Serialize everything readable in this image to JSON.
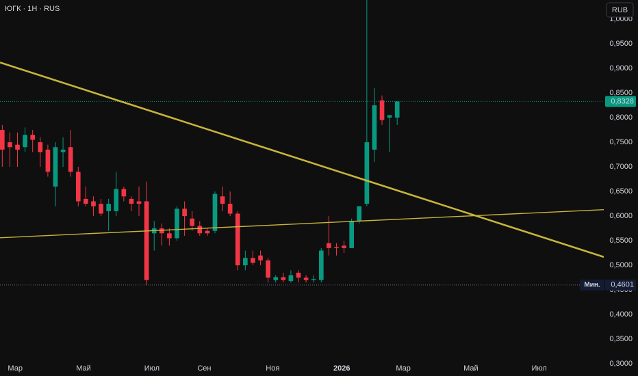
{
  "header": {
    "title": "ЮГК · 1Н · RUS",
    "currency": "RUB"
  },
  "chart_data": {
    "type": "candlestick",
    "x": [
      0,
      1,
      2,
      3,
      4,
      5,
      6,
      7,
      8,
      9,
      10,
      11,
      12,
      13,
      14,
      15,
      16,
      17,
      18,
      19,
      20,
      21,
      22,
      23,
      24,
      25,
      26,
      27,
      28,
      29,
      30,
      31,
      32,
      33,
      34,
      35,
      36,
      37,
      38,
      39,
      40,
      41,
      42,
      43,
      44,
      45,
      46,
      47,
      48,
      49,
      50,
      51,
      52
    ],
    "open": [
      0.775,
      0.75,
      0.745,
      0.74,
      0.765,
      0.75,
      0.735,
      0.66,
      0.73,
      0.74,
      0.69,
      0.635,
      0.63,
      0.625,
      0.61,
      0.61,
      0.655,
      0.635,
      0.63,
      0.63,
      0.565,
      0.575,
      0.565,
      0.555,
      0.615,
      0.595,
      0.58,
      0.57,
      0.57,
      0.64,
      0.625,
      0.605,
      0.5,
      0.515,
      0.52,
      0.51,
      0.47,
      0.476,
      0.468,
      0.485,
      0.475,
      0.47,
      0.47,
      0.545,
      0.537,
      0.54,
      0.535,
      0.59,
      0.625,
      0.735,
      0.835,
      0.8,
      0.8
    ],
    "high": [
      0.785,
      0.77,
      0.77,
      0.78,
      0.775,
      0.76,
      0.745,
      0.75,
      0.76,
      0.775,
      0.7,
      0.66,
      0.64,
      0.635,
      0.635,
      0.69,
      0.66,
      0.64,
      0.66,
      0.67,
      0.59,
      0.585,
      0.575,
      0.62,
      0.63,
      0.61,
      0.59,
      0.575,
      0.65,
      0.66,
      0.65,
      0.61,
      0.53,
      0.53,
      0.53,
      0.515,
      0.48,
      0.485,
      0.49,
      0.49,
      0.48,
      0.48,
      0.535,
      0.6,
      0.545,
      0.55,
      0.595,
      0.62,
      1.05,
      0.86,
      0.845,
      0.805,
      0.833
    ],
    "low": [
      0.7,
      0.7,
      0.7,
      0.73,
      0.73,
      0.7,
      0.68,
      0.62,
      0.7,
      0.68,
      0.62,
      0.62,
      0.6,
      0.6,
      0.57,
      0.6,
      0.63,
      0.61,
      0.6,
      0.46,
      0.53,
      0.54,
      0.54,
      0.55,
      0.56,
      0.57,
      0.56,
      0.56,
      0.565,
      0.61,
      0.6,
      0.49,
      0.49,
      0.5,
      0.5,
      0.465,
      0.465,
      0.465,
      0.465,
      0.465,
      0.465,
      0.465,
      0.465,
      0.52,
      0.52,
      0.525,
      0.535,
      0.585,
      0.62,
      0.71,
      0.785,
      0.73,
      0.785
    ],
    "close": [
      0.735,
      0.74,
      0.735,
      0.765,
      0.755,
      0.73,
      0.69,
      0.74,
      0.735,
      0.69,
      0.63,
      0.625,
      0.62,
      0.605,
      0.625,
      0.655,
      0.64,
      0.625,
      0.625,
      0.47,
      0.575,
      0.565,
      0.555,
      0.615,
      0.6,
      0.58,
      0.565,
      0.565,
      0.645,
      0.625,
      0.605,
      0.5,
      0.515,
      0.505,
      0.51,
      0.475,
      0.476,
      0.47,
      0.48,
      0.475,
      0.47,
      0.472,
      0.53,
      0.535,
      0.535,
      0.535,
      0.59,
      0.62,
      0.75,
      0.825,
      0.795,
      0.805,
      0.8328
    ],
    "up_color": "#089981",
    "down_color": "#f23645",
    "xlim": [
      -0.3,
      79.2
    ],
    "xticks": [
      {
        "value": 1.7,
        "label": "Мар"
      },
      {
        "value": 10.7,
        "label": "Май"
      },
      {
        "value": 19.7,
        "label": "Июл"
      },
      {
        "value": 26.6,
        "label": "Сен"
      },
      {
        "value": 35.6,
        "label": "Ноя"
      },
      {
        "value": 44.7,
        "label": "2026"
      },
      {
        "value": 52.8,
        "label": "Мар"
      },
      {
        "value": 61.7,
        "label": "Май"
      },
      {
        "value": 70.7,
        "label": "Июл"
      }
    ],
    "ylim": [
      0.2752,
      1.0389
    ],
    "yticks": [
      {
        "value": 0.3,
        "label": "0,3000"
      },
      {
        "value": 0.35,
        "label": "0,3500"
      },
      {
        "value": 0.4,
        "label": "0,4000"
      },
      {
        "value": 0.45,
        "label": "0,4500"
      },
      {
        "value": 0.5,
        "label": "0,5000"
      },
      {
        "value": 0.55,
        "label": "0,5500"
      },
      {
        "value": 0.6,
        "label": "0,6000"
      },
      {
        "value": 0.65,
        "label": "0,6500"
      },
      {
        "value": 0.7,
        "label": "0,7000"
      },
      {
        "value": 0.75,
        "label": "0,7500"
      },
      {
        "value": 0.8,
        "label": "0,8000"
      },
      {
        "value": 0.85,
        "label": "0,8500"
      },
      {
        "value": 0.9,
        "label": "0,9000"
      },
      {
        "value": 0.95,
        "label": "0,9500"
      },
      {
        "value": 1.0,
        "label": "1,0000"
      }
    ],
    "grid": false,
    "last_price": {
      "value": 0.8328,
      "label": "0,8328",
      "color": "#089981"
    },
    "min_price": {
      "name": "Мин.",
      "value": 0.4601,
      "label": "0,4601"
    },
    "trendlines": [
      {
        "color": "#c9b43a",
        "x": [
          -0.3,
          79.2
        ],
        "y": [
          0.912,
          0.517
        ]
      },
      {
        "color": "#c9b43a",
        "x": [
          -0.3,
          79.2
        ],
        "y": [
          0.556,
          0.613
        ]
      }
    ]
  }
}
